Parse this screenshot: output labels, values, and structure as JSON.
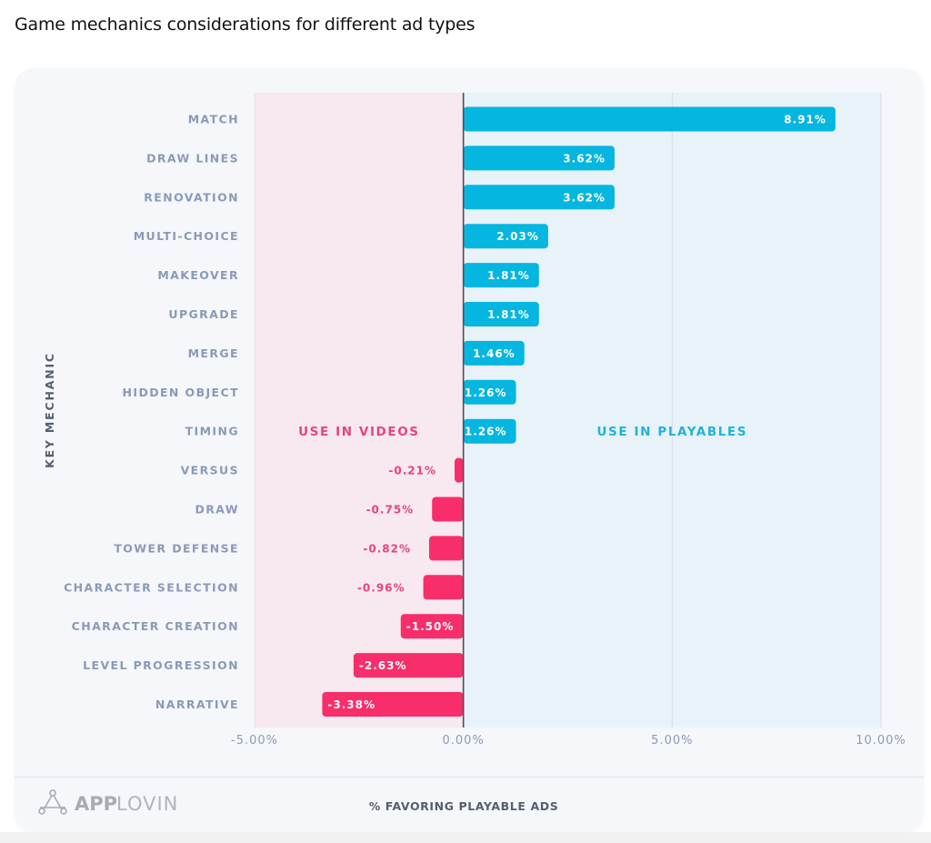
{
  "page": {
    "title": "Game mechanics considerations for different ad types"
  },
  "brand": {
    "logo_icon": "applovin-triangle-logo-icon",
    "name_bold": "APP",
    "name_light": "LOVIN"
  },
  "colors": {
    "positive_bar": "#05b6e1",
    "negative_bar": "#f72e6a",
    "negative_zone": "#f8e8f0",
    "positive_zone": "#e8f2f9",
    "videos_label": "#e8447a",
    "playables_label": "#1fb3d8",
    "category_text": "#8a9ab8"
  },
  "chart_data": {
    "type": "bar",
    "orientation": "horizontal",
    "title": "Game mechanics considerations for different ad types",
    "xlabel": "% FAVORING PLAYABLE ADS",
    "ylabel": "KEY MECHANIC",
    "xlim": [
      -5,
      10
    ],
    "x_ticks": [
      -5,
      0,
      5,
      10
    ],
    "x_tick_labels": [
      "-5.00%",
      "0.00%",
      "5.00%",
      "10.00%"
    ],
    "grid": "vertical",
    "zone_labels": {
      "negative": "USE IN VIDEOS",
      "positive": "USE IN PLAYABLES"
    },
    "categories": [
      "MATCH",
      "DRAW LINES",
      "RENOVATION",
      "MULTI-CHOICE",
      "MAKEOVER",
      "UPGRADE",
      "MERGE",
      "HIDDEN OBJECT",
      "TIMING",
      "VERSUS",
      "DRAW",
      "TOWER DEFENSE",
      "CHARACTER SELECTION",
      "CHARACTER CREATION",
      "LEVEL PROGRESSION",
      "NARRATIVE"
    ],
    "values": [
      8.91,
      3.62,
      3.62,
      2.03,
      1.81,
      1.81,
      1.46,
      1.26,
      1.26,
      -0.21,
      -0.75,
      -0.82,
      -0.96,
      -1.5,
      -2.63,
      -3.38
    ],
    "value_labels": [
      "8.91%",
      "3.62%",
      "3.62%",
      "2.03%",
      "1.81%",
      "1.81%",
      "1.46%",
      "1.26%",
      "1.26%",
      "-0.21%",
      "-0.75%",
      "-0.82%",
      "-0.96%",
      "-1.50%",
      "-2.63%",
      "-3.38%"
    ]
  }
}
